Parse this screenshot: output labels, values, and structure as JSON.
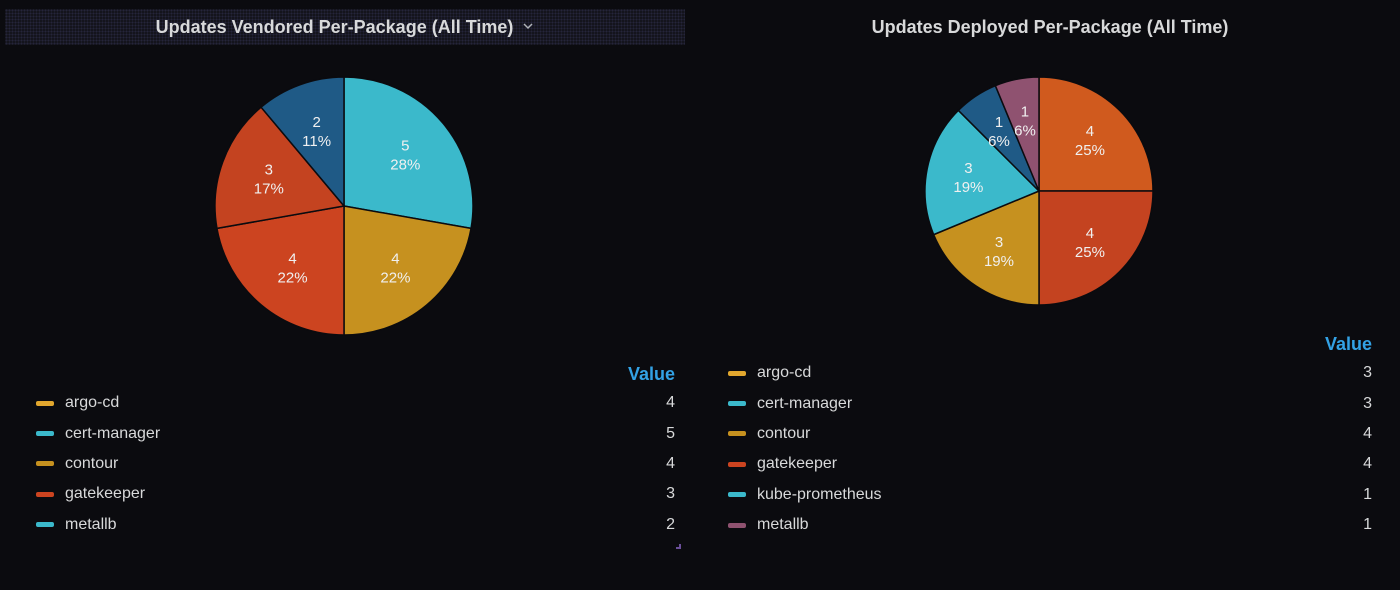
{
  "colors": {
    "background": "#0b0b0f",
    "legend_header": "#33a2e5",
    "argo-cd": "#e2a72e",
    "cert-manager": "#3bb9cb",
    "contour": "#c6911f",
    "gatekeeper": "#cc4420",
    "metallb-left": "#1f5a86",
    "metallb-right": "#8f5270",
    "kube-prometheus": "#1f5a86"
  },
  "icons": {
    "title_menu": "chevron-down-icon",
    "resize": "resize-handle-icon"
  },
  "panels": {
    "left": {
      "title": "Updates Vendored Per-Package (All Time)",
      "legend_header": "Value"
    },
    "right": {
      "title": "Updates Deployed Per-Package (All Time)",
      "legend_header": "Value"
    }
  },
  "chart_data": [
    {
      "type": "pie",
      "title": "Updates Vendored Per-Package (All Time)",
      "legend_header": "Value",
      "legend": [
        {
          "label": "argo-cd",
          "value": 4,
          "color": "#e2a72e"
        },
        {
          "label": "cert-manager",
          "value": 5,
          "color": "#3bb9cb"
        },
        {
          "label": "contour",
          "value": 4,
          "color": "#c6911f"
        },
        {
          "label": "gatekeeper",
          "value": 3,
          "color": "#cc4420"
        },
        {
          "label": "metallb",
          "value": 2,
          "color": "#3bb9cb"
        }
      ],
      "slices": [
        {
          "label": "cert-manager",
          "value": 5,
          "percent": "28%",
          "color": "#3bb9cb"
        },
        {
          "label": "contour",
          "value": 4,
          "percent": "22%",
          "color": "#c6911f"
        },
        {
          "label": "argo-cd",
          "value": 4,
          "percent": "22%",
          "color": "#cc4420"
        },
        {
          "label": "gatekeeper",
          "value": 3,
          "percent": "17%",
          "color": "#c44320"
        },
        {
          "label": "metallb",
          "value": 2,
          "percent": "11%",
          "color": "#1f5a86"
        }
      ]
    },
    {
      "type": "pie",
      "title": "Updates Deployed Per-Package (All Time)",
      "legend_header": "Value",
      "legend": [
        {
          "label": "argo-cd",
          "value": 3,
          "color": "#e2a72e"
        },
        {
          "label": "cert-manager",
          "value": 3,
          "color": "#3bb9cb"
        },
        {
          "label": "contour",
          "value": 4,
          "color": "#c6911f"
        },
        {
          "label": "gatekeeper",
          "value": 4,
          "color": "#cc4420"
        },
        {
          "label": "kube-prometheus",
          "value": 1,
          "color": "#3bb9cb"
        },
        {
          "label": "metallb",
          "value": 1,
          "color": "#8f5270"
        }
      ],
      "slices": [
        {
          "label": "contour",
          "value": 4,
          "percent": "25%",
          "color": "#d05a1e"
        },
        {
          "label": "gatekeeper",
          "value": 4,
          "percent": "25%",
          "color": "#c44320"
        },
        {
          "label": "argo-cd",
          "value": 3,
          "percent": "19%",
          "color": "#c6911f"
        },
        {
          "label": "cert-manager",
          "value": 3,
          "percent": "19%",
          "color": "#3bb9cb"
        },
        {
          "label": "kube-prometheus",
          "value": 1,
          "percent": "6%",
          "color": "#1f5a86"
        },
        {
          "label": "metallb",
          "value": 1,
          "percent": "6%",
          "color": "#8f5270"
        }
      ]
    }
  ]
}
